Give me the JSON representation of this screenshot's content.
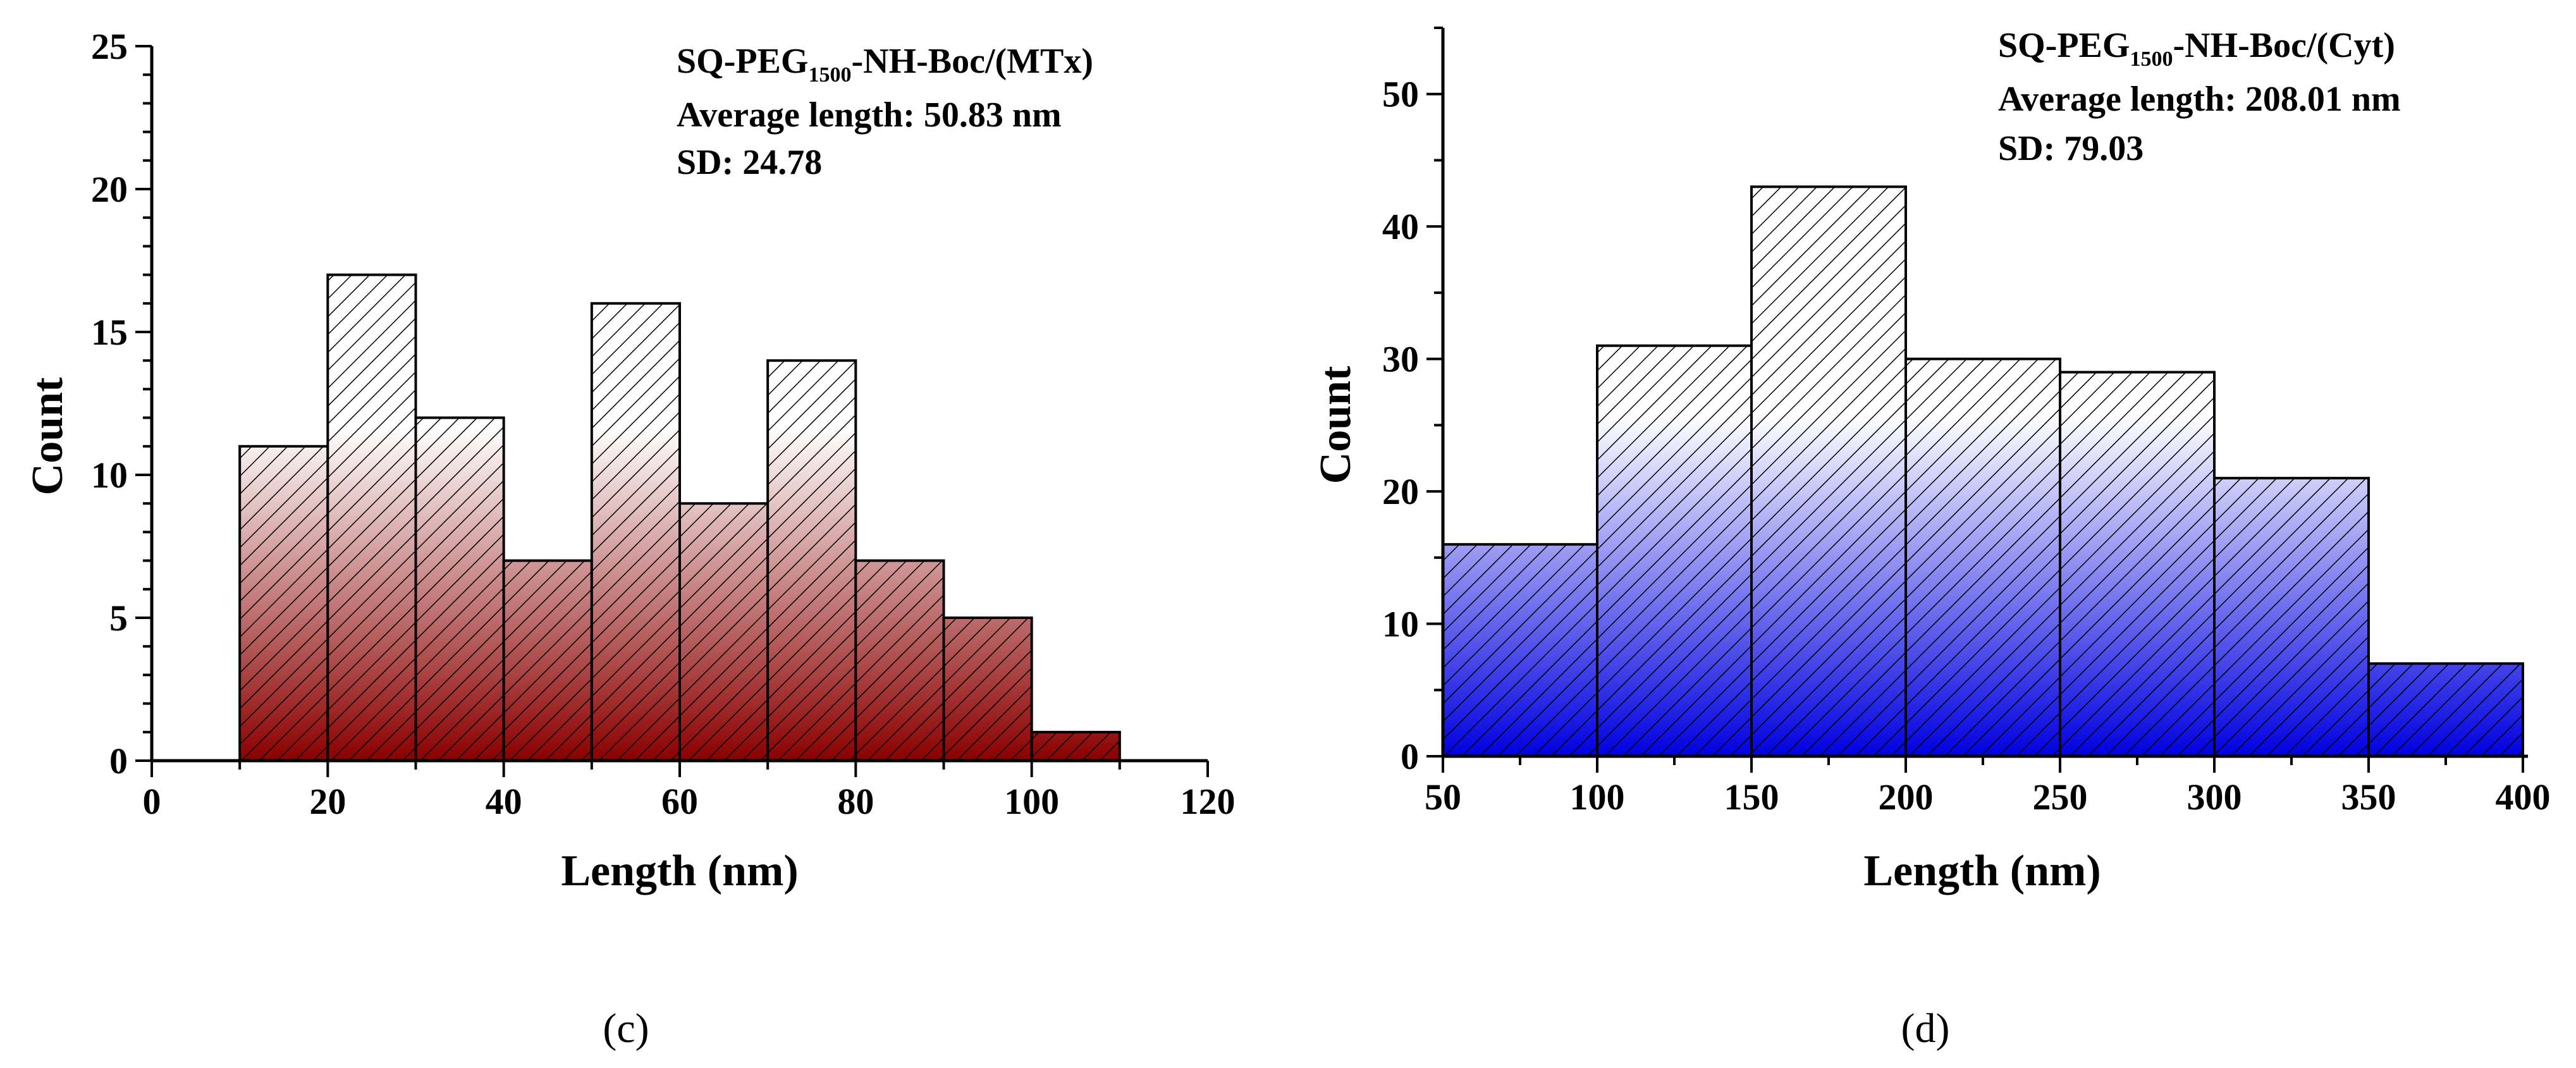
{
  "chart_data": [
    {
      "type": "bar",
      "panel_label": "(c)",
      "fill_color": "#8b0000",
      "xlabel": "Length (nm)",
      "ylabel": "Count",
      "xlim": [
        0,
        120
      ],
      "ylim": [
        0,
        25
      ],
      "xticks": [
        0,
        20,
        40,
        60,
        80,
        100,
        120
      ],
      "yticks": [
        0,
        5,
        10,
        15,
        20,
        25
      ],
      "bin_width": 10,
      "bins": [
        {
          "start": 10,
          "end": 20,
          "count": 11
        },
        {
          "start": 20,
          "end": 30,
          "count": 17
        },
        {
          "start": 30,
          "end": 40,
          "count": 12
        },
        {
          "start": 40,
          "end": 50,
          "count": 7
        },
        {
          "start": 50,
          "end": 60,
          "count": 16
        },
        {
          "start": 60,
          "end": 70,
          "count": 9
        },
        {
          "start": 70,
          "end": 80,
          "count": 14
        },
        {
          "start": 80,
          "end": 90,
          "count": 7
        },
        {
          "start": 90,
          "end": 100,
          "count": 5
        },
        {
          "start": 100,
          "end": 110,
          "count": 1
        }
      ],
      "annotation": {
        "name_prefix": "SQ-PEG",
        "name_sub": "1500",
        "name_suffix": "-NH-Boc/(MTx)",
        "average": "Average length: 50.83 nm",
        "sd": "SD: 24.78"
      }
    },
    {
      "type": "bar",
      "panel_label": "(d)",
      "fill_color": "#0000e0",
      "xlabel": "Length (nm)",
      "ylabel": "Count",
      "xlim": [
        50,
        400
      ],
      "ylim": [
        0,
        55
      ],
      "xticks": [
        50,
        100,
        150,
        200,
        250,
        300,
        350,
        400
      ],
      "yticks": [
        0,
        10,
        20,
        30,
        40,
        50
      ],
      "bin_width": 50,
      "bins": [
        {
          "start": 50,
          "end": 100,
          "count": 16
        },
        {
          "start": 100,
          "end": 150,
          "count": 31
        },
        {
          "start": 150,
          "end": 200,
          "count": 43
        },
        {
          "start": 200,
          "end": 250,
          "count": 30
        },
        {
          "start": 250,
          "end": 300,
          "count": 29
        },
        {
          "start": 300,
          "end": 350,
          "count": 21
        },
        {
          "start": 350,
          "end": 400,
          "count": 7
        }
      ],
      "annotation": {
        "name_prefix": "SQ-PEG",
        "name_sub": "1500",
        "name_suffix": "-NH-Boc/(Cyt)",
        "average": "Average length: 208.01 nm",
        "sd": "SD: 79.03"
      }
    }
  ]
}
